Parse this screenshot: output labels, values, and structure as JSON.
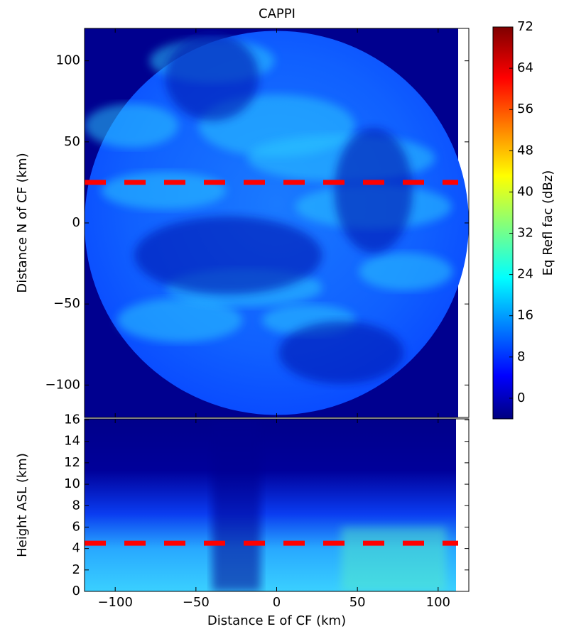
{
  "chart_data": [
    {
      "type": "heatmap",
      "title": "CAPPI",
      "ylabel": "Distance N of CF (km)",
      "xlim": [
        -119,
        119
      ],
      "ylim": [
        -120,
        120
      ],
      "yticks": [
        {
          "value": -100,
          "label": "−100"
        },
        {
          "value": -50,
          "label": "−50"
        },
        0,
        50,
        100
      ],
      "marker_line": 25,
      "marker_color": "#ff0000",
      "colorbar": {
        "label": "Eq Refl fac (dBz)",
        "lim": [
          -4,
          72
        ],
        "ticks": [
          0,
          8,
          16,
          24,
          32,
          40,
          48,
          56,
          64,
          72
        ]
      }
    },
    {
      "type": "heatmap",
      "xlabel": "Distance E of CF (km)",
      "ylabel": "Height ASL (km)",
      "xlim": [
        -119,
        119
      ],
      "ylim": [
        0,
        16.1
      ],
      "xticks": [
        {
          "value": -100,
          "label": "−100"
        },
        {
          "value": -50,
          "label": "−50"
        },
        0,
        50,
        100
      ],
      "yticks": [
        0,
        2,
        4,
        6,
        8,
        10,
        12,
        14,
        16
      ],
      "marker_line": 4.5,
      "marker_color": "#ff0000"
    }
  ]
}
